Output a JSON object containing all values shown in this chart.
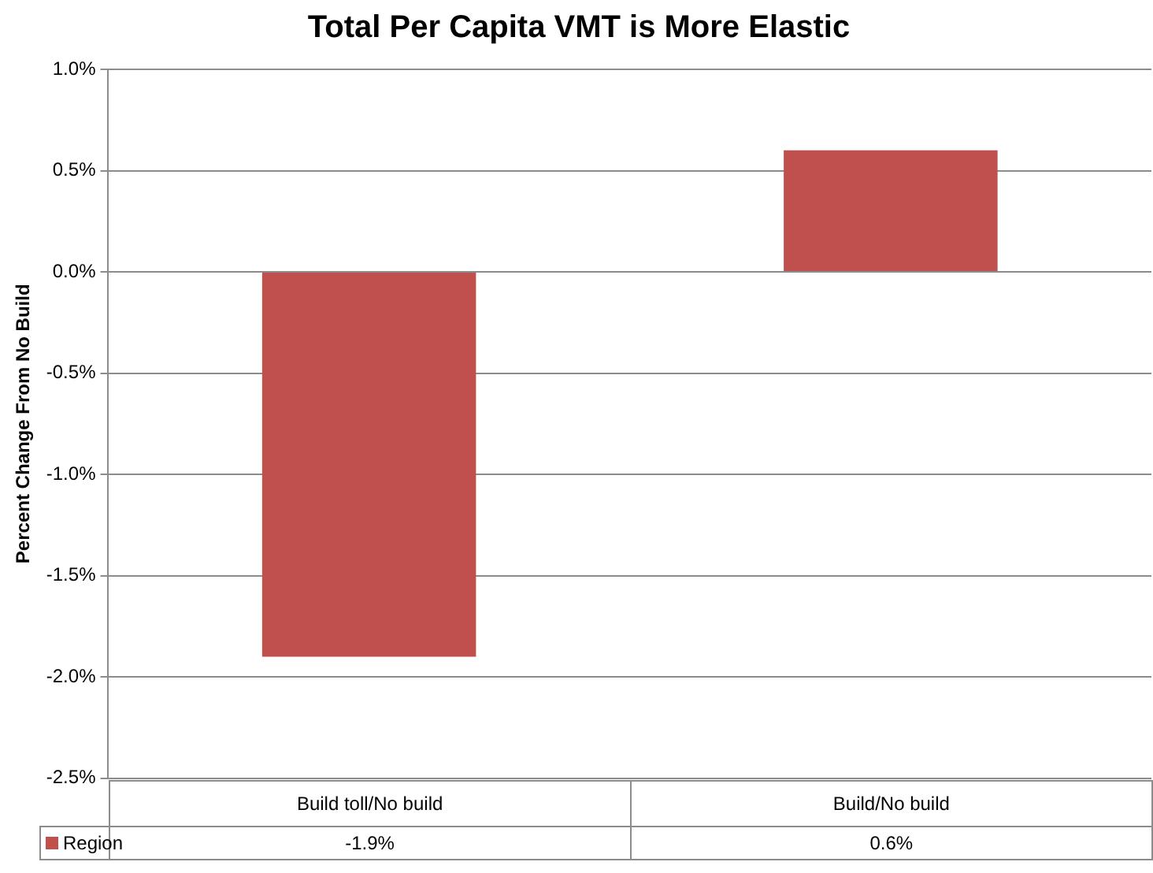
{
  "chart_data": {
    "type": "bar",
    "title": "Total Per Capita VMT is More Elastic",
    "ylabel": "Percent Change From No Build",
    "categories": [
      "Build toll/No build",
      "Build/No build"
    ],
    "series": [
      {
        "name": "Region",
        "color": "#c0504d",
        "values": [
          -1.9,
          0.6
        ],
        "value_labels": [
          "-1.9%",
          "0.6%"
        ]
      }
    ],
    "ylim": [
      -2.5,
      1.0
    ],
    "yticks": [
      {
        "value": -2.5,
        "label": "-2.5%"
      },
      {
        "value": -2.0,
        "label": "-2.0%"
      },
      {
        "value": -1.5,
        "label": "-1.5%"
      },
      {
        "value": -1.0,
        "label": "-1.0%"
      },
      {
        "value": -0.5,
        "label": "-0.5%"
      },
      {
        "value": 0.0,
        "label": "0.0%"
      },
      {
        "value": 0.5,
        "label": "0.5%"
      },
      {
        "value": 1.0,
        "label": "1.0%"
      }
    ],
    "grid": "y",
    "legend": "bottom"
  }
}
